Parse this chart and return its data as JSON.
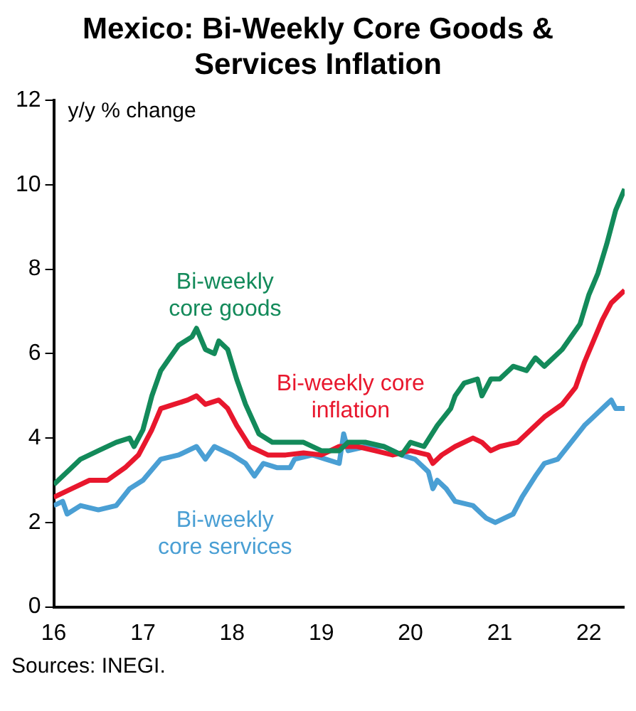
{
  "chart_data": {
    "type": "line",
    "title": "Mexico: Bi-Weekly Core Goods & Services Inflation",
    "ylabel": "y/y % change",
    "xlim": [
      16,
      22.4
    ],
    "xticks": [
      16,
      17,
      18,
      19,
      20,
      21,
      22
    ],
    "ylim": [
      0,
      12
    ],
    "yticks": [
      0,
      2,
      4,
      6,
      8,
      10,
      12
    ],
    "grid": false,
    "legend": false,
    "marker": "none",
    "line_style": "solid",
    "annotations": [
      "Sources: INEGI."
    ],
    "series": [
      {
        "name": "Bi-weekly core goods",
        "color": "#138a5a",
        "x": [
          16.0,
          16.2,
          16.3,
          16.5,
          16.7,
          16.85,
          16.9,
          17.0,
          17.1,
          17.2,
          17.3,
          17.4,
          17.55,
          17.6,
          17.7,
          17.8,
          17.85,
          17.95,
          18.05,
          18.15,
          18.3,
          18.45,
          18.6,
          18.8,
          19.0,
          19.2,
          19.3,
          19.5,
          19.7,
          19.9,
          20.0,
          20.15,
          20.3,
          20.45,
          20.5,
          20.6,
          20.75,
          20.8,
          20.9,
          21.0,
          21.15,
          21.3,
          21.4,
          21.5,
          21.7,
          21.9,
          22.0,
          22.1,
          22.2,
          22.3,
          22.4
        ],
        "values": [
          2.9,
          3.3,
          3.5,
          3.7,
          3.9,
          4.0,
          3.8,
          4.2,
          5.0,
          5.6,
          5.9,
          6.2,
          6.4,
          6.6,
          6.1,
          6.0,
          6.3,
          6.1,
          5.4,
          4.8,
          4.1,
          3.9,
          3.9,
          3.9,
          3.7,
          3.7,
          3.9,
          3.9,
          3.8,
          3.6,
          3.9,
          3.8,
          4.3,
          4.7,
          5.0,
          5.3,
          5.4,
          5.0,
          5.4,
          5.4,
          5.7,
          5.6,
          5.9,
          5.7,
          6.1,
          6.7,
          7.4,
          7.9,
          8.6,
          9.4,
          9.9
        ]
      },
      {
        "name": "Bi-weekly core inflation",
        "color": "#e8172d",
        "x": [
          16.0,
          16.2,
          16.4,
          16.6,
          16.8,
          16.95,
          17.1,
          17.2,
          17.35,
          17.5,
          17.6,
          17.7,
          17.85,
          17.95,
          18.05,
          18.2,
          18.4,
          18.6,
          18.8,
          19.0,
          19.2,
          19.4,
          19.6,
          19.8,
          20.0,
          20.2,
          20.25,
          20.35,
          20.5,
          20.7,
          20.8,
          20.9,
          21.0,
          21.2,
          21.35,
          21.5,
          21.7,
          21.85,
          21.95,
          22.05,
          22.15,
          22.25,
          22.4
        ],
        "values": [
          2.6,
          2.8,
          3.0,
          3.0,
          3.3,
          3.6,
          4.2,
          4.7,
          4.8,
          4.9,
          5.0,
          4.8,
          4.9,
          4.7,
          4.3,
          3.8,
          3.6,
          3.6,
          3.65,
          3.6,
          3.8,
          3.8,
          3.7,
          3.6,
          3.7,
          3.6,
          3.4,
          3.6,
          3.8,
          4.0,
          3.9,
          3.7,
          3.8,
          3.9,
          4.2,
          4.5,
          4.8,
          5.2,
          5.8,
          6.3,
          6.8,
          7.2,
          7.5
        ]
      },
      {
        "name": "Bi-weekly core services",
        "color": "#4a9fd4",
        "x": [
          16.0,
          16.1,
          16.15,
          16.3,
          16.5,
          16.7,
          16.85,
          17.0,
          17.2,
          17.4,
          17.6,
          17.7,
          17.8,
          18.0,
          18.15,
          18.25,
          18.35,
          18.5,
          18.65,
          18.7,
          18.9,
          19.05,
          19.2,
          19.25,
          19.3,
          19.5,
          19.7,
          19.9,
          20.05,
          20.1,
          20.2,
          20.25,
          20.3,
          20.4,
          20.5,
          20.7,
          20.85,
          20.95,
          21.05,
          21.15,
          21.25,
          21.4,
          21.5,
          21.65,
          21.8,
          21.95,
          22.05,
          22.2,
          22.25,
          22.3,
          22.4
        ],
        "values": [
          2.4,
          2.5,
          2.2,
          2.4,
          2.3,
          2.4,
          2.8,
          3.0,
          3.5,
          3.6,
          3.8,
          3.5,
          3.8,
          3.6,
          3.4,
          3.1,
          3.4,
          3.3,
          3.3,
          3.5,
          3.6,
          3.5,
          3.4,
          4.1,
          3.7,
          3.8,
          3.8,
          3.6,
          3.5,
          3.4,
          3.2,
          2.8,
          3.0,
          2.8,
          2.5,
          2.4,
          2.1,
          2.0,
          2.1,
          2.2,
          2.6,
          3.1,
          3.4,
          3.5,
          3.9,
          4.3,
          4.5,
          4.8,
          4.9,
          4.7,
          4.7
        ]
      }
    ]
  }
}
